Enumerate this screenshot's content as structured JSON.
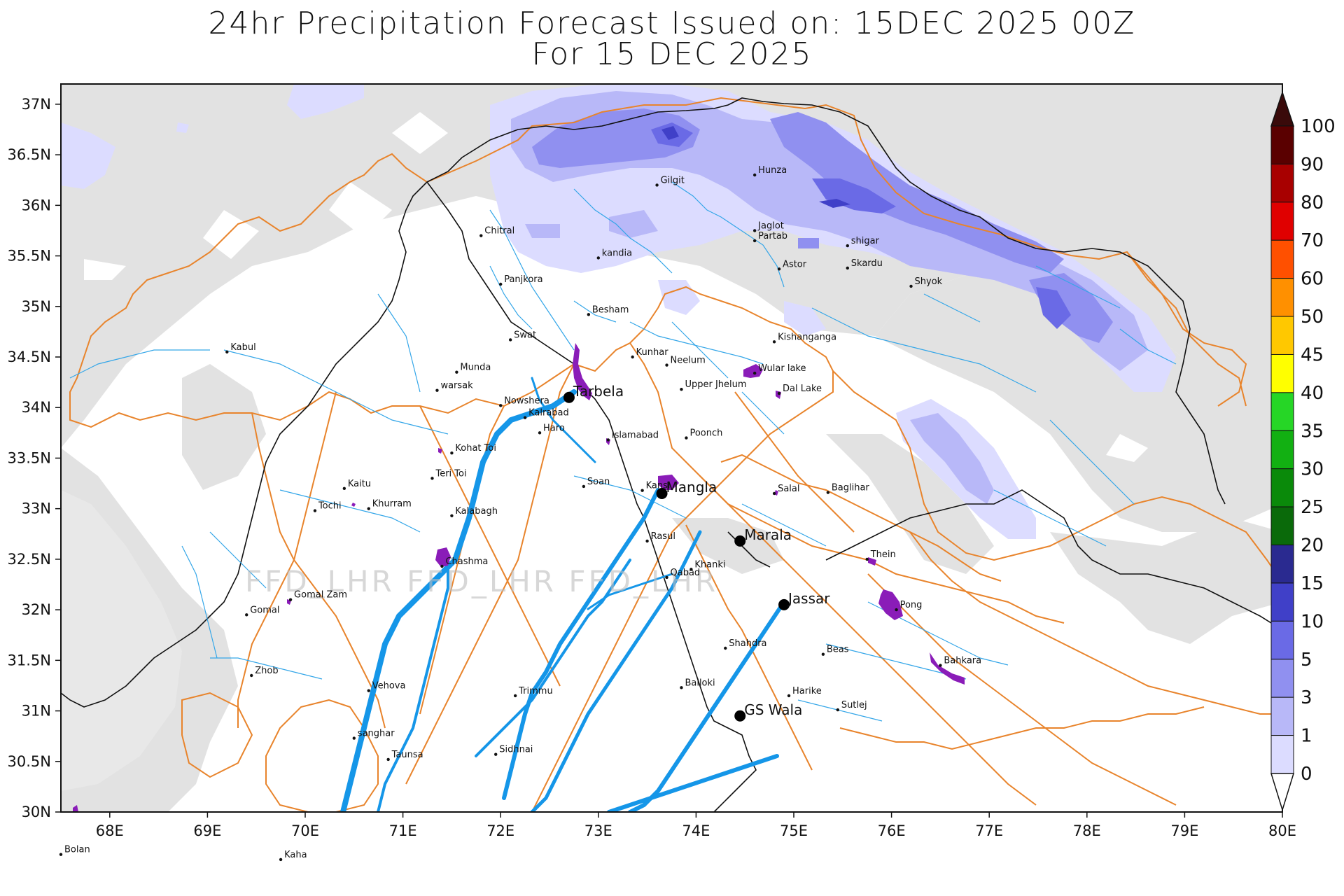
{
  "title": {
    "line1": "24hr Precipitation Forecast Issued on:  15DEC 2025 00Z",
    "line2": "For 15 DEC 2025"
  },
  "watermark": "FFD_LHR FFD_LHR FFD_LHR",
  "axes": {
    "x_ticks": [
      "68E",
      "69E",
      "70E",
      "71E",
      "72E",
      "73E",
      "74E",
      "75E",
      "76E",
      "77E",
      "78E",
      "79E",
      "80E"
    ],
    "y_ticks": [
      "37N",
      "36.5N",
      "36N",
      "35.5N",
      "35N",
      "34.5N",
      "34N",
      "33.5N",
      "33N",
      "32.5N",
      "32N",
      "31.5N",
      "31N",
      "30.5N",
      "30N"
    ],
    "lon_range": [
      67.5,
      80
    ],
    "lat_range": [
      30,
      37.2
    ]
  },
  "colorbar": {
    "labels": [
      "100",
      "90",
      "80",
      "70",
      "60",
      "50",
      "45",
      "40",
      "35",
      "30",
      "25",
      "20",
      "15",
      "10",
      "5",
      "3",
      "1",
      "0"
    ],
    "colors": [
      "#3a0a0a",
      "#5a0000",
      "#a80000",
      "#e00000",
      "#ff5000",
      "#ff9000",
      "#ffc800",
      "#ffff00",
      "#26d626",
      "#12b012",
      "#0a8a0a",
      "#0a6a0a",
      "#2a2a90",
      "#4040c8",
      "#6a6ae6",
      "#9090f0",
      "#b8b8f8",
      "#dcdcff",
      "#e2e2e2",
      "#ffffff"
    ]
  },
  "stations": [
    {
      "name": "Gilgit",
      "lon": 73.6,
      "lat": 36.2
    },
    {
      "name": "Hunza",
      "lon": 74.6,
      "lat": 36.3
    },
    {
      "name": "Chitral",
      "lon": 71.8,
      "lat": 35.7
    },
    {
      "name": "Jaglot",
      "lon": 74.6,
      "lat": 35.75
    },
    {
      "name": "Partab",
      "lon": 74.6,
      "lat": 35.65
    },
    {
      "name": "shigar",
      "lon": 75.55,
      "lat": 35.6
    },
    {
      "name": "kandia",
      "lon": 73.0,
      "lat": 35.48
    },
    {
      "name": "Astor",
      "lon": 74.85,
      "lat": 35.37
    },
    {
      "name": "Skardu",
      "lon": 75.55,
      "lat": 35.38
    },
    {
      "name": "Panjkora",
      "lon": 72.0,
      "lat": 35.22
    },
    {
      "name": "Shyok",
      "lon": 76.2,
      "lat": 35.2
    },
    {
      "name": "Besham",
      "lon": 72.9,
      "lat": 34.92
    },
    {
      "name": "Swat",
      "lon": 72.1,
      "lat": 34.67
    },
    {
      "name": "Kishanganga",
      "lon": 74.8,
      "lat": 34.65
    },
    {
      "name": "Kabul",
      "lon": 69.2,
      "lat": 34.55
    },
    {
      "name": "Kunhar",
      "lon": 73.35,
      "lat": 34.5
    },
    {
      "name": "Neelum",
      "lon": 73.7,
      "lat": 34.42
    },
    {
      "name": "Munda",
      "lon": 71.55,
      "lat": 34.35
    },
    {
      "name": "Wular lake",
      "lon": 74.6,
      "lat": 34.34
    },
    {
      "name": "warsak",
      "lon": 71.35,
      "lat": 34.17
    },
    {
      "name": "Upper Jhelum",
      "lon": 73.85,
      "lat": 34.18
    },
    {
      "name": "Dal Lake",
      "lon": 74.85,
      "lat": 34.14
    },
    {
      "name": "Nowshera",
      "lon": 72.0,
      "lat": 34.02
    },
    {
      "name": "Kalrabad",
      "lon": 72.25,
      "lat": 33.9
    },
    {
      "name": "Haro",
      "lon": 72.4,
      "lat": 33.75
    },
    {
      "name": "Islamabad",
      "lon": 73.1,
      "lat": 33.68
    },
    {
      "name": "Poonch",
      "lon": 73.9,
      "lat": 33.7
    },
    {
      "name": "Kohat Toi",
      "lon": 71.5,
      "lat": 33.55
    },
    {
      "name": "Teri Toi",
      "lon": 71.3,
      "lat": 33.3
    },
    {
      "name": "Soan",
      "lon": 72.85,
      "lat": 33.22
    },
    {
      "name": "Kansi",
      "lon": 73.45,
      "lat": 33.18
    },
    {
      "name": "Kaitu",
      "lon": 70.4,
      "lat": 33.2
    },
    {
      "name": "Salal",
      "lon": 74.8,
      "lat": 33.15
    },
    {
      "name": "Baglihar",
      "lon": 75.35,
      "lat": 33.16
    },
    {
      "name": "Khurram",
      "lon": 70.65,
      "lat": 33.0
    },
    {
      "name": "Tochi",
      "lon": 70.1,
      "lat": 32.98
    },
    {
      "name": "Kalabagh",
      "lon": 71.5,
      "lat": 32.93
    },
    {
      "name": "Rasul",
      "lon": 73.5,
      "lat": 32.68
    },
    {
      "name": "Chashma",
      "lon": 71.4,
      "lat": 32.43
    },
    {
      "name": "Khanki",
      "lon": 73.95,
      "lat": 32.4
    },
    {
      "name": "Thein",
      "lon": 75.75,
      "lat": 32.5
    },
    {
      "name": "Qabad",
      "lon": 73.7,
      "lat": 32.32
    },
    {
      "name": "Gomal Zam",
      "lon": 69.85,
      "lat": 32.1
    },
    {
      "name": "Gomal",
      "lon": 69.4,
      "lat": 31.95
    },
    {
      "name": "Pong",
      "lon": 76.05,
      "lat": 32.0
    },
    {
      "name": "Shahdra",
      "lon": 74.3,
      "lat": 31.62
    },
    {
      "name": "Beas",
      "lon": 75.3,
      "lat": 31.56
    },
    {
      "name": "Bahkara",
      "lon": 76.5,
      "lat": 31.45
    },
    {
      "name": "Zhob",
      "lon": 69.45,
      "lat": 31.35
    },
    {
      "name": "Vehova",
      "lon": 70.65,
      "lat": 31.2
    },
    {
      "name": "Balloki",
      "lon": 73.85,
      "lat": 31.23
    },
    {
      "name": "Trimmu",
      "lon": 72.15,
      "lat": 31.15
    },
    {
      "name": "Harike",
      "lon": 74.95,
      "lat": 31.15
    },
    {
      "name": "Sutlej",
      "lon": 75.45,
      "lat": 31.01
    },
    {
      "name": "sanghar",
      "lon": 70.5,
      "lat": 30.73
    },
    {
      "name": "Sidhnai",
      "lon": 71.95,
      "lat": 30.57
    },
    {
      "name": "Taunsa",
      "lon": 70.85,
      "lat": 30.52
    },
    {
      "name": "Bolan",
      "lon": 67.5,
      "lat": 29.58
    },
    {
      "name": "Kaha",
      "lon": 69.75,
      "lat": 29.53
    }
  ],
  "headworks": [
    {
      "name": "Tarbela",
      "lon": 72.7,
      "lat": 34.1
    },
    {
      "name": "Mangla",
      "lon": 73.65,
      "lat": 33.15
    },
    {
      "name": "Marala",
      "lon": 74.45,
      "lat": 32.68
    },
    {
      "name": "Jassar",
      "lon": 74.9,
      "lat": 32.05
    },
    {
      "name": "GS Wala",
      "lon": 74.45,
      "lat": 30.95
    }
  ],
  "precipitation_areas": [
    {
      "band": "0",
      "desc": "light grey no-rain mask covering most of map outside plains"
    },
    {
      "band": "1-3",
      "desc": "pale lavender northern Himalaya and Karakoram"
    },
    {
      "band": "3-5",
      "desc": "light purple over Karakoram / Ladakh"
    },
    {
      "band": "5-10",
      "desc": "blue-purple cores near 73.8E 36.7N and 75.5E 36N"
    }
  ]
}
